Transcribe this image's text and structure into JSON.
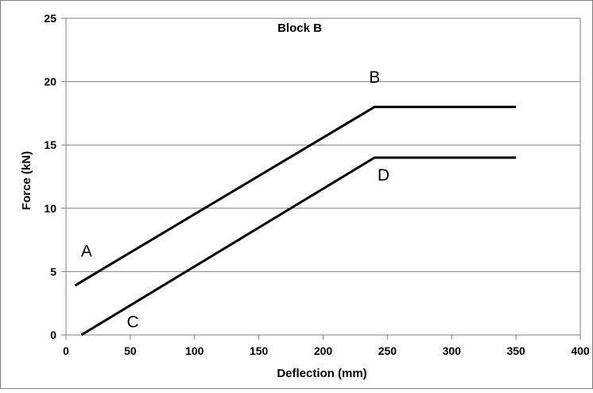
{
  "chart_data": {
    "type": "line",
    "title": "Block B",
    "xlabel": "Deflection (mm)",
    "ylabel": "Force (kN)",
    "xlim": [
      0,
      400
    ],
    "ylim": [
      0,
      25
    ],
    "x_ticks": [
      0,
      50,
      100,
      150,
      200,
      250,
      300,
      350,
      400
    ],
    "y_ticks": [
      0,
      5,
      10,
      15,
      20,
      25
    ],
    "x_tick_labels": [
      "0",
      "50",
      "100",
      "150",
      "200",
      "250",
      "300",
      "350",
      "400"
    ],
    "y_tick_labels": [
      "0",
      "5",
      "10",
      "15",
      "20",
      "25"
    ],
    "grid": "horizontal",
    "legend": "none",
    "series": [
      {
        "points": [
          [
            7,
            3.9
          ],
          [
            240,
            18
          ],
          [
            350,
            18
          ]
        ]
      },
      {
        "points": [
          [
            12,
            0
          ],
          [
            240,
            14
          ],
          [
            350,
            14
          ]
        ]
      }
    ],
    "annotations": [
      {
        "text": "A",
        "x": 16,
        "y": 6.2
      },
      {
        "text": "B",
        "x": 240,
        "y": 19.9
      },
      {
        "text": "C",
        "x": 52,
        "y": 0.6
      },
      {
        "text": "D",
        "x": 247,
        "y": 12.2
      }
    ],
    "colors": {
      "line": "#000000",
      "grid": "#808080",
      "frame": "#808080"
    }
  }
}
